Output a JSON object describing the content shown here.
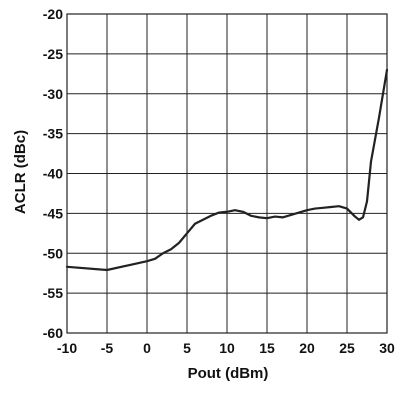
{
  "chart_data": {
    "type": "line",
    "title": "",
    "xlabel": "Pout (dBm)",
    "ylabel": "ACLR (dBc)",
    "xlim": [
      -10,
      30
    ],
    "ylim": [
      -60,
      -20
    ],
    "xticks": [
      -10,
      -5,
      0,
      5,
      10,
      15,
      20,
      25,
      30
    ],
    "yticks": [
      -20,
      -25,
      -30,
      -35,
      -40,
      -45,
      -50,
      -55,
      -60
    ],
    "xtick_labels": [
      "-10",
      "-5",
      "0",
      "5",
      "10",
      "15",
      "20",
      "25",
      "30"
    ],
    "ytick_labels": [
      "-20",
      "-25",
      "-30",
      "-35",
      "-40",
      "-45",
      "-50",
      "-55",
      "-60"
    ],
    "grid": true,
    "legend": "none",
    "line_color": "#222222",
    "grid_color": "#222222",
    "series": [
      {
        "x": [
          -10,
          -5,
          0,
          1,
          2,
          3,
          4,
          5,
          6,
          7,
          8,
          9,
          10,
          11,
          12,
          13,
          14,
          15,
          16,
          17,
          18,
          19,
          20,
          21,
          22,
          23,
          24,
          25,
          26,
          26.5,
          27,
          27.5,
          28,
          29,
          30
        ],
        "y": [
          -51.7,
          -52.1,
          -51.0,
          -50.7,
          -50.0,
          -49.5,
          -48.7,
          -47.5,
          -46.3,
          -45.8,
          -45.3,
          -44.9,
          -44.8,
          -44.6,
          -44.8,
          -45.3,
          -45.5,
          -45.6,
          -45.4,
          -45.5,
          -45.2,
          -44.9,
          -44.6,
          -44.4,
          -44.3,
          -44.2,
          -44.1,
          -44.4,
          -45.4,
          -45.8,
          -45.5,
          -43.5,
          -38.5,
          -33.0,
          -27.0
        ]
      }
    ]
  }
}
